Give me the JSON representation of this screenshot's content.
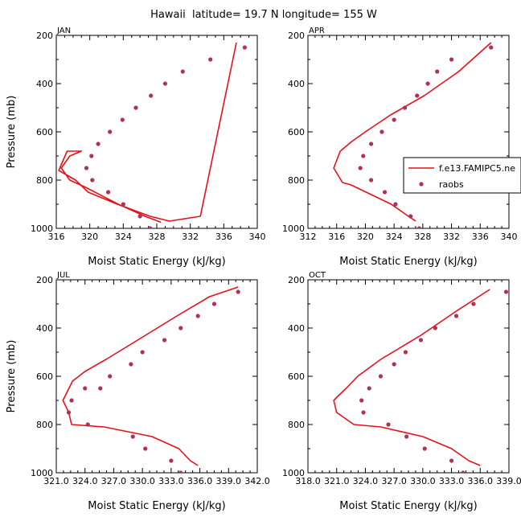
{
  "title": "Hawaii  latitude= 19.7 N longitude= 155 W",
  "colors": {
    "model": "#e8101a",
    "raobs": "#b0305a",
    "axis": "#000000"
  },
  "legend": {
    "model_label": "f.e13.FAMIPC5.ne",
    "raobs_label": "raobs"
  },
  "chart_data": [
    {
      "type": "line",
      "panel": "JAN",
      "xlabel": "Moist Static Energy (kJ/kg)",
      "ylabel": "Pressure (mb)",
      "xlim": [
        316,
        340
      ],
      "ylim": [
        1000,
        200
      ],
      "xticks": [
        316,
        320,
        324,
        328,
        332,
        336,
        340
      ],
      "xtick_labels": [
        "316",
        "320",
        "324",
        "328",
        "332",
        "336",
        "340"
      ],
      "yticks": [
        200,
        400,
        600,
        800,
        1000
      ],
      "ytick_labels": [
        "200",
        "400",
        "600",
        "800",
        "1000"
      ],
      "series": [
        {
          "name": "f.e13.FAMIPC5.ne",
          "style": "line",
          "x": [
            328.5,
            326.6,
            323.4,
            319.5,
            317.6,
            316.6,
            317.6,
            319.0,
            317.3,
            316.3,
            318.3,
            319.8,
            323.3,
            327.2,
            329.5,
            333.2,
            337.5
          ],
          "y": [
            975,
            950,
            900,
            830,
            800,
            750,
            700,
            680,
            680,
            760,
            800,
            850,
            900,
            950,
            970,
            950,
            230
          ]
        },
        {
          "name": "raobs",
          "style": "scatter",
          "x": [
            338.5,
            334.4,
            331.1,
            329.0,
            327.3,
            325.5,
            323.9,
            322.4,
            321.0,
            320.2,
            319.6,
            320.3,
            322.2,
            324.0,
            326.0,
            327.2
          ],
          "y": [
            250,
            300,
            350,
            400,
            450,
            500,
            550,
            600,
            650,
            700,
            750,
            800,
            850,
            900,
            950,
            1000
          ]
        }
      ]
    },
    {
      "type": "line",
      "panel": "APR",
      "xlabel": "Moist Static Energy (kJ/kg)",
      "ylabel": "Pressure (mb)",
      "xlim": [
        312,
        340
      ],
      "ylim": [
        1000,
        200
      ],
      "xticks": [
        312,
        316,
        320,
        324,
        328,
        332,
        336,
        340
      ],
      "xtick_labels": [
        "312",
        "316",
        "320",
        "324",
        "328",
        "332",
        "336",
        "340"
      ],
      "yticks": [
        200,
        400,
        600,
        800,
        1000
      ],
      "ytick_labels": [
        "200",
        "400",
        "600",
        "800",
        "1000"
      ],
      "series": [
        {
          "name": "f.e13.FAMIPC5.ne",
          "style": "line",
          "x": [
            327.0,
            326.0,
            323.6,
            320.8,
            318.0,
            316.8,
            315.6,
            316.5,
            318.1,
            320.0,
            323.5,
            328.2,
            333.0,
            337.5
          ],
          "y": [
            970,
            950,
            900,
            860,
            820,
            810,
            750,
            680,
            640,
            600,
            530,
            450,
            350,
            230
          ]
        },
        {
          "name": "raobs",
          "style": "scatter",
          "x": [
            337.5,
            332.0,
            330.0,
            328.7,
            327.2,
            325.5,
            324.0,
            322.3,
            320.8,
            319.7,
            319.3,
            320.8,
            322.7,
            324.2,
            326.3,
            327.5
          ],
          "y": [
            250,
            300,
            350,
            400,
            450,
            500,
            550,
            600,
            650,
            700,
            750,
            800,
            850,
            900,
            950,
            1000
          ]
        }
      ]
    },
    {
      "type": "line",
      "panel": "JUL",
      "xlabel": "Moist Static Energy (kJ/kg)",
      "ylabel": "Pressure (mb)",
      "xlim": [
        321.0,
        342.0
      ],
      "ylim": [
        1000,
        200
      ],
      "xticks": [
        321.0,
        324.0,
        327.0,
        330.0,
        333.0,
        336.0,
        339.0,
        342.0
      ],
      "xtick_labels": [
        "321.0",
        "324.0",
        "327.0",
        "330.0",
        "333.0",
        "336.0",
        "339.0",
        "342.0"
      ],
      "yticks": [
        200,
        400,
        600,
        800,
        1000
      ],
      "ytick_labels": [
        "200",
        "400",
        "600",
        "800",
        "1000"
      ],
      "series": [
        {
          "name": "f.e13.FAMIPC5.ne",
          "style": "line",
          "x": [
            335.8,
            335.0,
            333.8,
            331.0,
            326.0,
            322.6,
            322.3,
            321.7,
            322.7,
            324.0,
            326.2,
            329.5,
            333.6,
            337.0,
            340.0
          ],
          "y": [
            970,
            950,
            900,
            850,
            810,
            800,
            750,
            700,
            620,
            580,
            530,
            450,
            350,
            270,
            230
          ]
        },
        {
          "name": "raobs",
          "style": "scatter",
          "x": [
            340.0,
            337.5,
            335.8,
            334.0,
            332.3,
            330.0,
            328.8,
            326.6,
            325.6,
            324.0,
            322.6,
            322.3,
            324.3,
            329.0,
            330.3,
            333.0,
            334.0
          ],
          "y": [
            250,
            300,
            350,
            400,
            450,
            500,
            550,
            600,
            650,
            650,
            700,
            750,
            800,
            850,
            900,
            950,
            1000
          ]
        }
      ]
    },
    {
      "type": "line",
      "panel": "OCT",
      "xlabel": "Moist Static Energy (kJ/kg)",
      "ylabel": "Pressure (mb)",
      "xlim": [
        318.0,
        339.0
      ],
      "ylim": [
        1000,
        200
      ],
      "xticks": [
        318.0,
        321.0,
        324.0,
        327.0,
        330.0,
        333.0,
        336.0,
        339.0
      ],
      "xtick_labels": [
        "318.0",
        "321.0",
        "324.0",
        "327.0",
        "330.0",
        "333.0",
        "336.0",
        "339.0"
      ],
      "yticks": [
        200,
        400,
        600,
        800,
        1000
      ],
      "ytick_labels": [
        "200",
        "400",
        "600",
        "800",
        "1000"
      ],
      "series": [
        {
          "name": "f.e13.FAMIPC5.ne",
          "style": "line",
          "x": [
            336.0,
            334.8,
            333.0,
            330.0,
            325.6,
            322.8,
            321.0,
            320.7,
            321.2,
            322.0,
            323.2,
            325.6,
            329.8,
            333.5,
            337.0
          ],
          "y": [
            970,
            950,
            900,
            850,
            810,
            800,
            750,
            700,
            680,
            650,
            600,
            530,
            430,
            330,
            240
          ]
        },
        {
          "name": "raobs",
          "style": "scatter",
          "x": [
            338.7,
            335.3,
            333.5,
            331.3,
            329.8,
            328.2,
            327.0,
            325.6,
            324.4,
            323.6,
            323.8,
            326.4,
            328.3,
            330.2,
            333.0,
            334.2
          ],
          "y": [
            250,
            300,
            350,
            400,
            450,
            500,
            550,
            600,
            650,
            700,
            750,
            800,
            850,
            900,
            950,
            1000
          ]
        }
      ]
    }
  ]
}
